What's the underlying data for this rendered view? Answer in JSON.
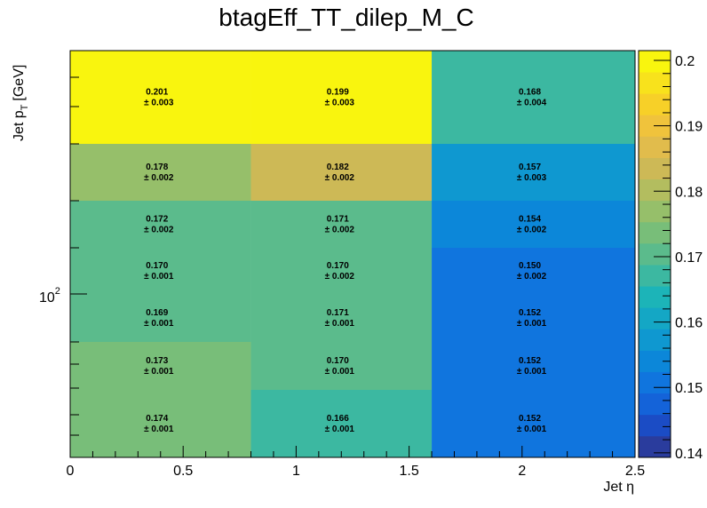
{
  "chart_data": {
    "type": "heatmap",
    "title": "btagEff_TT_dilep_M_C",
    "xlabel": "Jet η",
    "ylabel_main": "Jet p",
    "ylabel_sub": "T",
    "ylabel_unit": "[GeV]",
    "x_edges": [
      0,
      0.8,
      1.6,
      2.5
    ],
    "x_ticks": [
      "0",
      "0.5",
      "1",
      "1.5",
      "2",
      "2.5"
    ],
    "x_tick_values": [
      0,
      0.5,
      1,
      1.5,
      2,
      2.5
    ],
    "y_scale": "log",
    "y_tick_label_base": "10",
    "y_tick_label_exp": "2",
    "rows_bottom_to_top": [
      {
        "values": [
          0.174,
          0.166,
          0.152
        ],
        "errors": [
          "± 0.001",
          "± 0.001",
          "± 0.001"
        ],
        "labels": [
          "0.174",
          "0.166",
          "0.152"
        ]
      },
      {
        "values": [
          0.173,
          0.17,
          0.152
        ],
        "errors": [
          "± 0.001",
          "± 0.001",
          "± 0.001"
        ],
        "labels": [
          "0.173",
          "0.170",
          "0.152"
        ]
      },
      {
        "values": [
          0.169,
          0.171,
          0.152
        ],
        "errors": [
          "± 0.001",
          "± 0.001",
          "± 0.001"
        ],
        "labels": [
          "0.169",
          "0.171",
          "0.152"
        ]
      },
      {
        "values": [
          0.17,
          0.17,
          0.15
        ],
        "errors": [
          "± 0.001",
          "± 0.002",
          "± 0.002"
        ],
        "labels": [
          "0.170",
          "0.170",
          "0.150"
        ]
      },
      {
        "values": [
          0.172,
          0.171,
          0.154
        ],
        "errors": [
          "± 0.002",
          "± 0.002",
          "± 0.002"
        ],
        "labels": [
          "0.172",
          "0.171",
          "0.154"
        ]
      },
      {
        "values": [
          0.178,
          0.182,
          0.157
        ],
        "errors": [
          "± 0.002",
          "± 0.002",
          "± 0.003"
        ],
        "labels": [
          "0.178",
          "0.182",
          "0.157"
        ]
      },
      {
        "values": [
          0.201,
          0.199,
          0.168
        ],
        "errors": [
          "± 0.003",
          "± 0.003",
          "± 0.004"
        ],
        "labels": [
          "0.201",
          "0.199",
          "0.168"
        ]
      }
    ],
    "z_range": [
      0.1393,
      0.2015
    ],
    "z_ticks": [
      "0.14",
      "0.15",
      "0.16",
      "0.17",
      "0.18",
      "0.19",
      "0.2"
    ],
    "z_tick_values": [
      0.14,
      0.15,
      0.16,
      0.17,
      0.18,
      0.19,
      0.2
    ],
    "palette": [
      "#2a3c9d",
      "#1b4cc5",
      "#1463d9",
      "#1075de",
      "#0c87d9",
      "#0f98d0",
      "#14a7c5",
      "#1cb4b8",
      "#3cb8a1",
      "#5bbb8c",
      "#78be79",
      "#96bf6a",
      "#b3bd5f",
      "#cdb956",
      "#e1bc4c",
      "#f0c33c",
      "#f7d028",
      "#f8e21c",
      "#f9f50e"
    ]
  }
}
